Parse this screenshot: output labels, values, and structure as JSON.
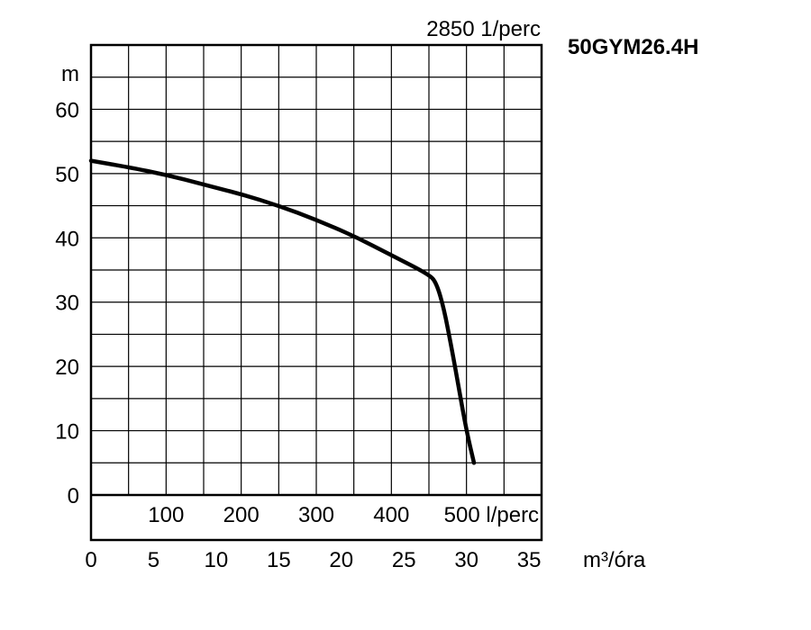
{
  "chart_data": {
    "type": "line",
    "title": "50GYM26.4H",
    "speed_label": "2850 1/perc",
    "ylabel": "m",
    "y_ticks": [
      "0",
      "10",
      "20",
      "30",
      "40",
      "50",
      "60"
    ],
    "ylim": [
      0,
      70
    ],
    "x_primary": {
      "unit": "l/perc",
      "ticks": [
        "100",
        "200",
        "300",
        "400",
        "500 l/perc"
      ],
      "values": [
        100,
        200,
        300,
        400,
        500
      ]
    },
    "x_secondary": {
      "unit": "m³/óra",
      "ticks": [
        "0",
        "5",
        "10",
        "15",
        "20",
        "25",
        "30",
        "35"
      ],
      "values": [
        0,
        5,
        10,
        15,
        20,
        25,
        30,
        35
      ]
    },
    "xlim": [
      0,
      600
    ],
    "grid": true,
    "series": [
      {
        "color": "#000000",
        "x": [
          0,
          50,
          100,
          150,
          200,
          250,
          300,
          350,
          400,
          450,
          460,
          470,
          480,
          490,
          500,
          510
        ],
        "y": [
          52,
          51,
          49.8,
          48.3,
          46.8,
          45,
          42.8,
          40.3,
          37.3,
          34.3,
          33,
          29,
          23,
          16.5,
          10,
          5
        ]
      }
    ]
  }
}
